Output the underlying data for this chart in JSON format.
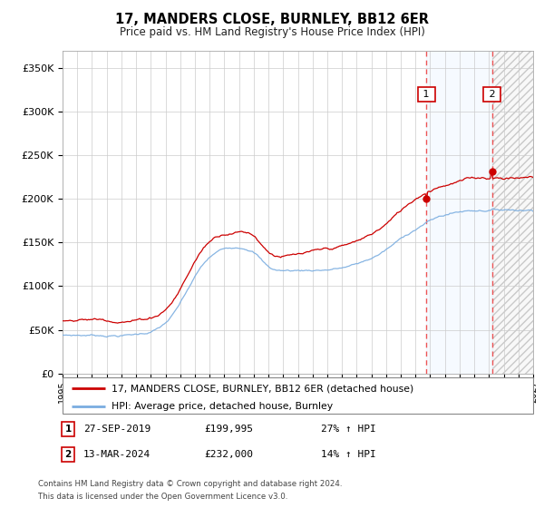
{
  "title": "17, MANDERS CLOSE, BURNLEY, BB12 6ER",
  "subtitle": "Price paid vs. HM Land Registry's House Price Index (HPI)",
  "ylim": [
    0,
    370000
  ],
  "yticks": [
    0,
    50000,
    100000,
    150000,
    200000,
    250000,
    300000,
    350000
  ],
  "x_start_year": 1995,
  "x_end_year": 2027,
  "sale1_date": "27-SEP-2019",
  "sale1_price": 199995,
  "sale1_label": "£199,995",
  "sale1_hpi_label": "27% ↑ HPI",
  "sale1_year": 2019.75,
  "sale1_value": 199995,
  "sale2_date": "13-MAR-2024",
  "sale2_price": 232000,
  "sale2_label": "£232,000",
  "sale2_hpi_label": "14% ↑ HPI",
  "sale2_year": 2024.2,
  "sale2_value": 232000,
  "legend_label1": "17, MANDERS CLOSE, BURNLEY, BB12 6ER (detached house)",
  "legend_label2": "HPI: Average price, detached house, Burnley",
  "footnote1": "Contains HM Land Registry data © Crown copyright and database right 2024.",
  "footnote2": "This data is licensed under the Open Government Licence v3.0.",
  "hpi_color": "#7aade0",
  "sale_color": "#cc0000",
  "bg_color": "#ffffff",
  "grid_color": "#cccccc",
  "shade_color": "#ddeeff",
  "hatch_color": "#cccccc"
}
